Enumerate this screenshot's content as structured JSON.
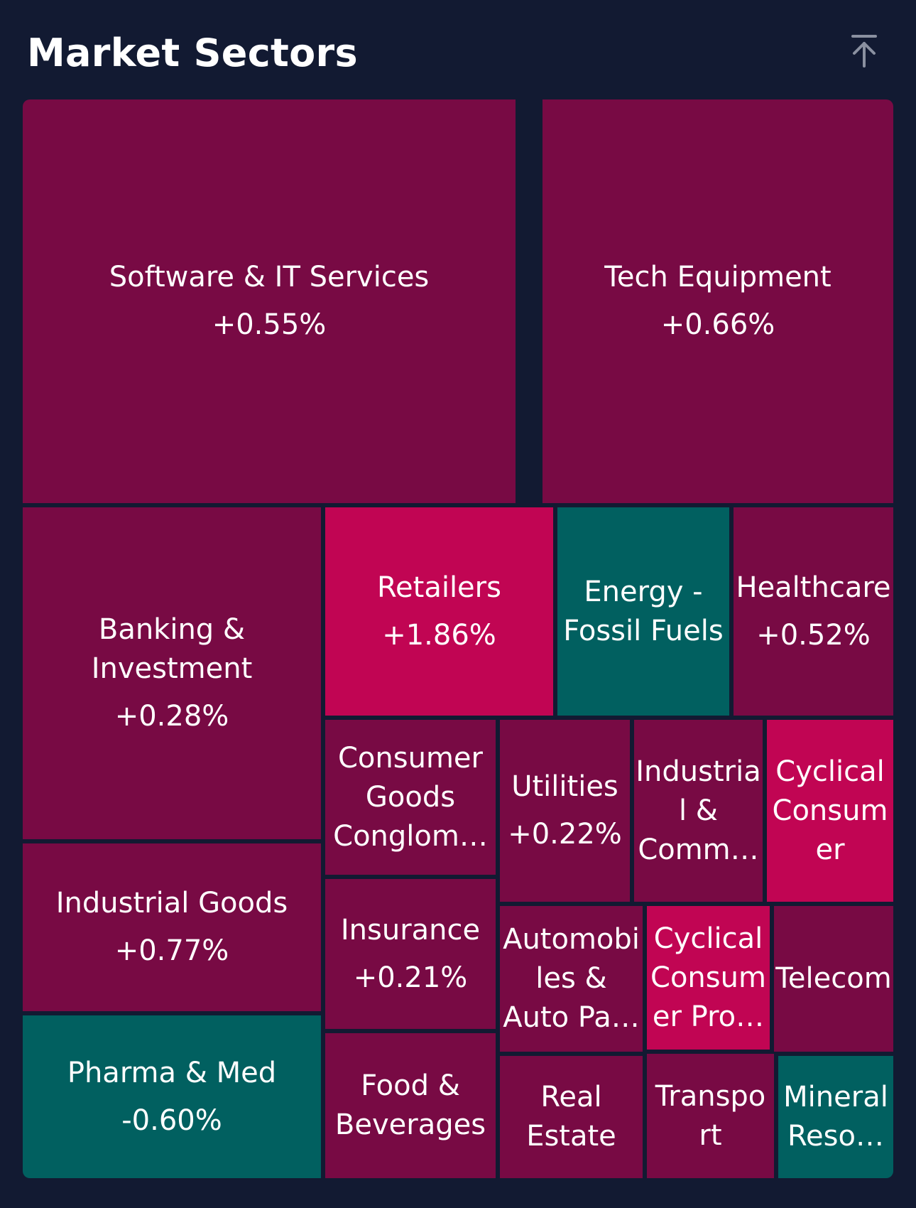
{
  "header": {
    "title": "Market Sectors",
    "collapse_icon": "arrow-up-to-top-icon",
    "icon_color": "#8a90a0"
  },
  "colors": {
    "background": "#121a32",
    "positive": "#780a44",
    "strong_positive": "#c10553",
    "negative": "#016060",
    "text": "#ffffff"
  },
  "chart_data": {
    "type": "treemap",
    "title": "Market Sectors",
    "tiles": [
      {
        "name": "Software & IT Services",
        "change": "+0.55%",
        "tone": "positive"
      },
      {
        "name": "Tech Equipment",
        "change": "+0.66%",
        "tone": "positive"
      },
      {
        "name": "Banking &\nInvestment",
        "change": "+0.28%",
        "tone": "positive"
      },
      {
        "name": "Retailers",
        "change": "+1.86%",
        "tone": "strong_positive"
      },
      {
        "name": "Energy -\nFossil Fuels",
        "change": "",
        "tone": "negative"
      },
      {
        "name": "Healthcare",
        "change": "+0.52%",
        "tone": "positive"
      },
      {
        "name": "Consumer\nGoods\nConglom…",
        "change": "",
        "tone": "positive"
      },
      {
        "name": "Utilities",
        "change": "+0.22%",
        "tone": "positive"
      },
      {
        "name": "Industria\nl &\nComm…",
        "change": "",
        "tone": "positive"
      },
      {
        "name": "Cyclical\nConsum\ner",
        "change": "",
        "tone": "strong_positive"
      },
      {
        "name": "Industrial Goods",
        "change": "+0.77%",
        "tone": "positive"
      },
      {
        "name": "Insurance",
        "change": "+0.21%",
        "tone": "positive"
      },
      {
        "name": "Automobi\nles &\nAuto Pa…",
        "change": "",
        "tone": "positive"
      },
      {
        "name": "Cyclical\nConsum\ner Pro…",
        "change": "",
        "tone": "strong_positive"
      },
      {
        "name": "Telecom",
        "change": "",
        "tone": "positive"
      },
      {
        "name": "Pharma & Med",
        "change": "-0.60%",
        "tone": "negative"
      },
      {
        "name": "Food &\nBeverages",
        "change": "",
        "tone": "positive"
      },
      {
        "name": "Real\nEstate",
        "change": "",
        "tone": "positive"
      },
      {
        "name": "Transpo\nrt",
        "change": "",
        "tone": "positive"
      },
      {
        "name": "Mineral\nReso…",
        "change": "",
        "tone": "negative"
      }
    ]
  }
}
